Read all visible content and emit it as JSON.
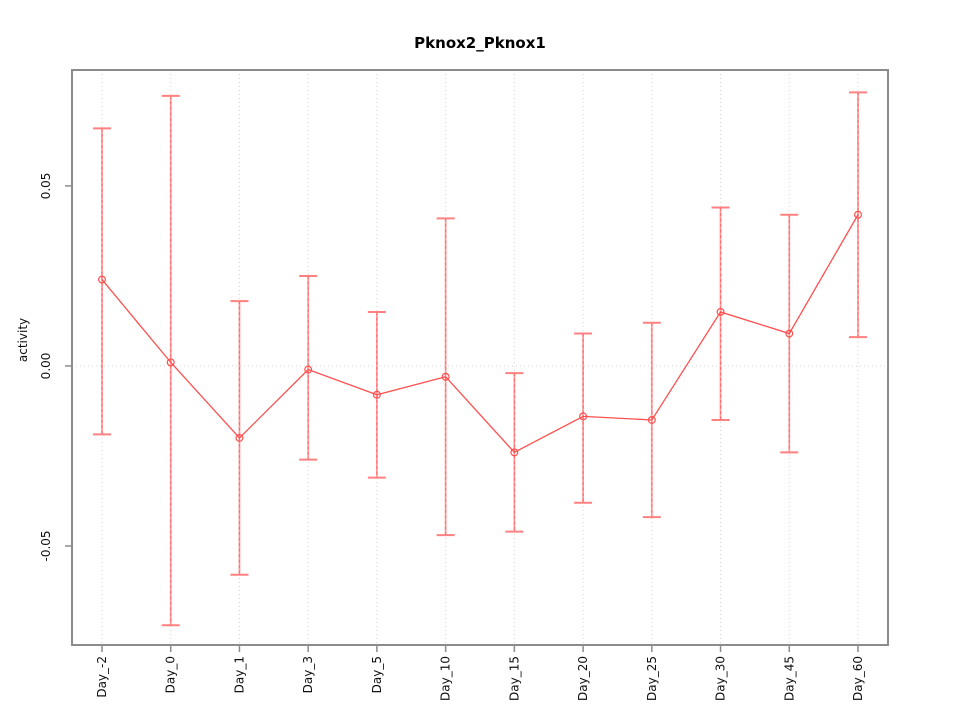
{
  "chart_data": {
    "type": "line",
    "title": "Pknox2_Pknox1",
    "xlabel": "",
    "ylabel": "activity",
    "categories": [
      "Day_-2",
      "Day_0",
      "Day_1",
      "Day_3",
      "Day_5",
      "Day_10",
      "Day_15",
      "Day_20",
      "Day_25",
      "Day_30",
      "Day_45",
      "Day_60"
    ],
    "series": [
      {
        "name": "activity",
        "values": [
          0.024,
          0.001,
          -0.02,
          -0.001,
          -0.008,
          -0.003,
          -0.024,
          -0.014,
          -0.015,
          0.015,
          0.009,
          0.042
        ],
        "error_lower": [
          -0.019,
          -0.072,
          -0.058,
          -0.026,
          -0.031,
          -0.047,
          -0.046,
          -0.038,
          -0.042,
          -0.015,
          -0.024,
          0.008
        ],
        "error_upper": [
          0.066,
          0.075,
          0.018,
          0.025,
          0.015,
          0.041,
          -0.002,
          0.009,
          0.012,
          0.044,
          0.042,
          0.076
        ]
      }
    ],
    "yticks": [
      {
        "value": 0.05,
        "label": "0.05"
      },
      {
        "value": 0.0,
        "label": "0.00"
      },
      {
        "value": -0.05,
        "label": "-0.05"
      }
    ],
    "ylim": [
      -0.0775,
      0.0822
    ],
    "grid": {
      "vertical_dotted_per_category": true,
      "horizontal_zero_line_dotted": true
    },
    "legend_position": "none",
    "marker": "open-circle",
    "colors": {
      "series_line": "#ff5050",
      "marker": "#ff5050",
      "error_bar": "#ff9a9a",
      "error_bar_dash": "#ff6b6b",
      "error_cap": "#ff8080",
      "grid": "#d4d4d4",
      "axis_box": "#8c8c8c",
      "background": "#ffffff"
    }
  }
}
